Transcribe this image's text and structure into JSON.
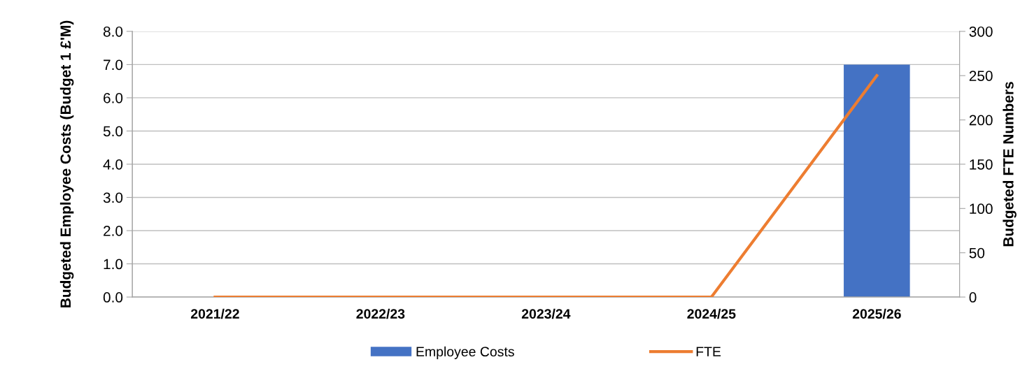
{
  "chart_data": {
    "type": "bar",
    "categories": [
      "2021/22",
      "2022/23",
      "2023/24",
      "2024/25",
      "2025/26"
    ],
    "series": [
      {
        "name": "Employee Costs",
        "color": "#4472c4",
        "values": [
          0,
          0,
          0,
          0,
          7.0
        ]
      },
      {
        "name": "FTE",
        "type": "line",
        "axis": "y2",
        "color": "#ed7d31",
        "values": [
          0,
          0,
          0,
          0,
          250
        ]
      }
    ],
    "ylabel": "Budgeted Employee Costs (Budget 1 £'M)",
    "y2label": "Budgeted FTE Numbers",
    "ylim": [
      0,
      8
    ],
    "yticks": [
      {
        "value": 0,
        "label": "0.0"
      },
      {
        "value": 1,
        "label": "1.0"
      },
      {
        "value": 2,
        "label": "2.0"
      },
      {
        "value": 3,
        "label": "3.0"
      },
      {
        "value": 4,
        "label": "4.0"
      },
      {
        "value": 5,
        "label": "5.0"
      },
      {
        "value": 6,
        "label": "6.0"
      },
      {
        "value": 7,
        "label": "7.0"
      },
      {
        "value": 8,
        "label": "8.0"
      }
    ],
    "y2lim": [
      0,
      300
    ],
    "y2ticks": [
      0,
      50,
      100,
      150,
      200,
      250,
      300
    ],
    "grid": "y",
    "legend": "bottom",
    "marker": "none",
    "line_style": "solid"
  }
}
